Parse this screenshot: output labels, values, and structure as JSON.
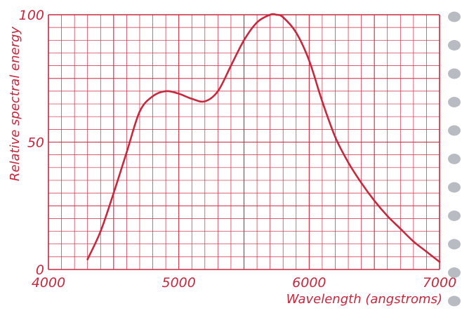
{
  "chart_data": {
    "type": "line",
    "xlabel": "Wavelength (angstroms)",
    "ylabel": "Relative spectral energy",
    "xlim": [
      4000,
      7000
    ],
    "ylim": [
      0,
      100
    ],
    "x_ticks": [
      "4000",
      "5000",
      "6000",
      "7000"
    ],
    "y_ticks": [
      "0",
      "50",
      "100"
    ],
    "grid": true,
    "colors": {
      "line": "#c8283e",
      "grid": "#c8283e",
      "text": "#c8283e",
      "punch_holes": "#b8bcc2"
    },
    "series": [
      {
        "x": [
          4300,
          4400,
          4500,
          4600,
          4700,
          4800,
          4900,
          5000,
          5100,
          5200,
          5300,
          5400,
          5500,
          5600,
          5700,
          5750,
          5800,
          5900,
          6000,
          6100,
          6200,
          6300,
          6400,
          6500,
          6600,
          6700,
          6800,
          6900,
          7000
        ],
        "y": [
          4,
          15,
          30,
          46,
          62,
          68,
          70,
          69,
          67,
          66,
          70,
          80,
          90,
          97,
          100,
          100,
          99,
          93,
          82,
          66,
          52,
          42,
          34,
          27,
          21,
          16,
          11,
          7,
          3
        ]
      }
    ]
  }
}
